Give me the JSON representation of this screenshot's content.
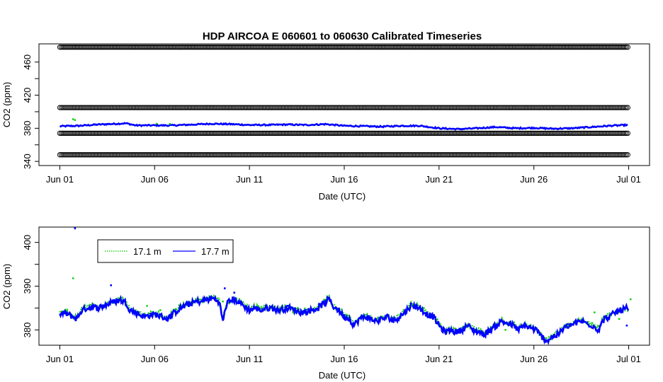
{
  "chart_data": [
    {
      "type": "scatter",
      "title": "HDP   AIRCOA  E    060601  to  060630   Calibrated Timeseries",
      "xlabel": "Date (UTC)",
      "ylabel": "CO2 (ppm)",
      "x_tick_labels": [
        "Jun 01",
        "Jun 06",
        "Jun 11",
        "Jun 16",
        "Jun 21",
        "Jun 26",
        "Jul 01"
      ],
      "x_tick_days": [
        0,
        5,
        10,
        15,
        20,
        25,
        30
      ],
      "xlim_days": [
        -1.1,
        31.1
      ],
      "y_ticks": [
        340,
        380,
        420,
        460
      ],
      "y_minor_ticks": [
        360,
        400,
        440
      ],
      "ylim": [
        335,
        482
      ],
      "grid": false,
      "reference_levels": [
        348,
        374,
        405,
        478
      ],
      "series": [
        {
          "name": "17.7 m",
          "color": "#0000ff",
          "baseline": [
            [
              0,
              382.5
            ],
            [
              1,
              383
            ],
            [
              2,
              384.5
            ],
            [
              3,
              385.5
            ],
            [
              3.5,
              386
            ],
            [
              4,
              383.5
            ],
            [
              5,
              383.5
            ],
            [
              6,
              383.5
            ],
            [
              7,
              384.5
            ],
            [
              8,
              385.5
            ],
            [
              9,
              385
            ],
            [
              10,
              384
            ],
            [
              11,
              384
            ],
            [
              12,
              384.5
            ],
            [
              13,
              384
            ],
            [
              14,
              385
            ],
            [
              15,
              383
            ],
            [
              16,
              382.5
            ],
            [
              17,
              382
            ],
            [
              18,
              383
            ],
            [
              19,
              383
            ],
            [
              20,
              380
            ],
            [
              21,
              379
            ],
            [
              22,
              380
            ],
            [
              23,
              381.5
            ],
            [
              24,
              380
            ],
            [
              25,
              380.5
            ],
            [
              26,
              379.5
            ],
            [
              27,
              380
            ],
            [
              28,
              381.5
            ],
            [
              29,
              383
            ],
            [
              30,
              384
            ]
          ]
        },
        {
          "name": "17.1 m",
          "color": "#00cc00",
          "outliers": [
            [
              0.7,
              391
            ],
            [
              5.1,
              385.5
            ],
            [
              5.8,
              385.3
            ],
            [
              0.8,
              390
            ]
          ]
        }
      ]
    },
    {
      "type": "line",
      "xlabel": "Date (UTC)",
      "ylabel": "CO2 (ppm)",
      "x_tick_labels": [
        "Jun 01",
        "Jun 06",
        "Jun 11",
        "Jun 16",
        "Jun 21",
        "Jun 26",
        "Jul 01"
      ],
      "x_tick_days": [
        0,
        5,
        10,
        15,
        20,
        25,
        30
      ],
      "xlim_days": [
        -1.1,
        31.1
      ],
      "y_ticks": [
        380,
        390,
        400
      ],
      "y_minor_ticks": [
        385,
        395
      ],
      "ylim": [
        376.5,
        403.5
      ],
      "grid": false,
      "legend_position": "top-left",
      "legend": [
        {
          "label": "17.1 m",
          "color": "#00cc00",
          "style": "dotted"
        },
        {
          "label": "17.7 m",
          "color": "#0000ff",
          "style": "solid"
        }
      ],
      "series": [
        {
          "name": "17.7 m",
          "color": "#0000ff",
          "points": [
            [
              0,
              383.5
            ],
            [
              0.3,
              383.8
            ],
            [
              0.6,
              383.2
            ],
            [
              0.9,
              382.5
            ],
            [
              1.1,
              384.2
            ],
            [
              1.4,
              385
            ],
            [
              1.7,
              385.2
            ],
            [
              2,
              385
            ],
            [
              2.3,
              385.5
            ],
            [
              2.6,
              386
            ],
            [
              2.9,
              386.5
            ],
            [
              3.2,
              386.8
            ],
            [
              3.5,
              386.2
            ],
            [
              3.7,
              384.5
            ],
            [
              3.9,
              384.2
            ],
            [
              4.2,
              383.5
            ],
            [
              4.5,
              383
            ],
            [
              4.8,
              383.5
            ],
            [
              5.1,
              383.5
            ],
            [
              5.4,
              383
            ],
            [
              5.7,
              382.5
            ],
            [
              6,
              383.8
            ],
            [
              6.3,
              384.8
            ],
            [
              6.6,
              385.5
            ],
            [
              6.9,
              386
            ],
            [
              7.2,
              386.5
            ],
            [
              7.5,
              386.5
            ],
            [
              7.8,
              387
            ],
            [
              8.1,
              387.2
            ],
            [
              8.4,
              386.5
            ],
            [
              8.6,
              382
            ],
            [
              8.8,
              386
            ],
            [
              9.1,
              387
            ],
            [
              9.4,
              386.5
            ],
            [
              9.7,
              385.5
            ],
            [
              10,
              384.5
            ],
            [
              10.3,
              385
            ],
            [
              10.6,
              384.5
            ],
            [
              10.9,
              385
            ],
            [
              11.2,
              385
            ],
            [
              11.5,
              384.5
            ],
            [
              11.8,
              384.8
            ],
            [
              12.1,
              385
            ],
            [
              12.4,
              384.5
            ],
            [
              12.7,
              384
            ],
            [
              13,
              384.2
            ],
            [
              13.3,
              384.5
            ],
            [
              13.6,
              385
            ],
            [
              13.9,
              386
            ],
            [
              14.2,
              387
            ],
            [
              14.4,
              385.5
            ],
            [
              14.7,
              384.5
            ],
            [
              15,
              383
            ],
            [
              15.3,
              382.5
            ],
            [
              15.5,
              381
            ],
            [
              15.8,
              382.5
            ],
            [
              16.1,
              383
            ],
            [
              16.4,
              382.5
            ],
            [
              16.7,
              382
            ],
            [
              17,
              382.5
            ],
            [
              17.3,
              383
            ],
            [
              17.6,
              382
            ],
            [
              17.9,
              383
            ],
            [
              18.2,
              384
            ],
            [
              18.5,
              385.5
            ],
            [
              18.8,
              385.5
            ],
            [
              19.1,
              384.5
            ],
            [
              19.4,
              383.5
            ],
            [
              19.7,
              383
            ],
            [
              20,
              381
            ],
            [
              20.3,
              379.5
            ],
            [
              20.6,
              380
            ],
            [
              20.9,
              379.5
            ],
            [
              21.2,
              380
            ],
            [
              21.5,
              381
            ],
            [
              21.8,
              380
            ],
            [
              22.1,
              379.5
            ],
            [
              22.4,
              379
            ],
            [
              22.7,
              380
            ],
            [
              23,
              381
            ],
            [
              23.3,
              382
            ],
            [
              23.6,
              381.5
            ],
            [
              23.9,
              381
            ],
            [
              24.2,
              380
            ],
            [
              24.5,
              381
            ],
            [
              24.8,
              380.5
            ],
            [
              25.1,
              380
            ],
            [
              25.4,
              378.5
            ],
            [
              25.7,
              377.5
            ],
            [
              26,
              378.5
            ],
            [
              26.3,
              379
            ],
            [
              26.6,
              380.5
            ],
            [
              26.9,
              381
            ],
            [
              27.2,
              381.5
            ],
            [
              27.5,
              382
            ],
            [
              27.8,
              381.5
            ],
            [
              28.1,
              381
            ],
            [
              28.4,
              380
            ],
            [
              28.7,
              382.5
            ],
            [
              29,
              383
            ],
            [
              29.3,
              384
            ],
            [
              29.6,
              384.5
            ],
            [
              29.9,
              385
            ],
            [
              30,
              384
            ]
          ],
          "outliers": [
            [
              0.8,
              403.2
            ],
            [
              2.7,
              390.2
            ],
            [
              8.7,
              389.5
            ],
            [
              9.2,
              388.5
            ],
            [
              12,
              385.5
            ],
            [
              29.9,
              381
            ]
          ]
        },
        {
          "name": "17.1 m",
          "color": "#00cc00",
          "outliers": [
            [
              0.7,
              391.8
            ],
            [
              4.6,
              385.5
            ],
            [
              5.3,
              384.5
            ],
            [
              8.6,
              386.5
            ],
            [
              12.3,
              384
            ],
            [
              18.6,
              385.8
            ],
            [
              19.2,
              385
            ],
            [
              23.5,
              380
            ],
            [
              26.8,
              381
            ],
            [
              28.2,
              384
            ],
            [
              29.5,
              382.5
            ],
            [
              30.1,
              387
            ]
          ]
        }
      ]
    }
  ]
}
